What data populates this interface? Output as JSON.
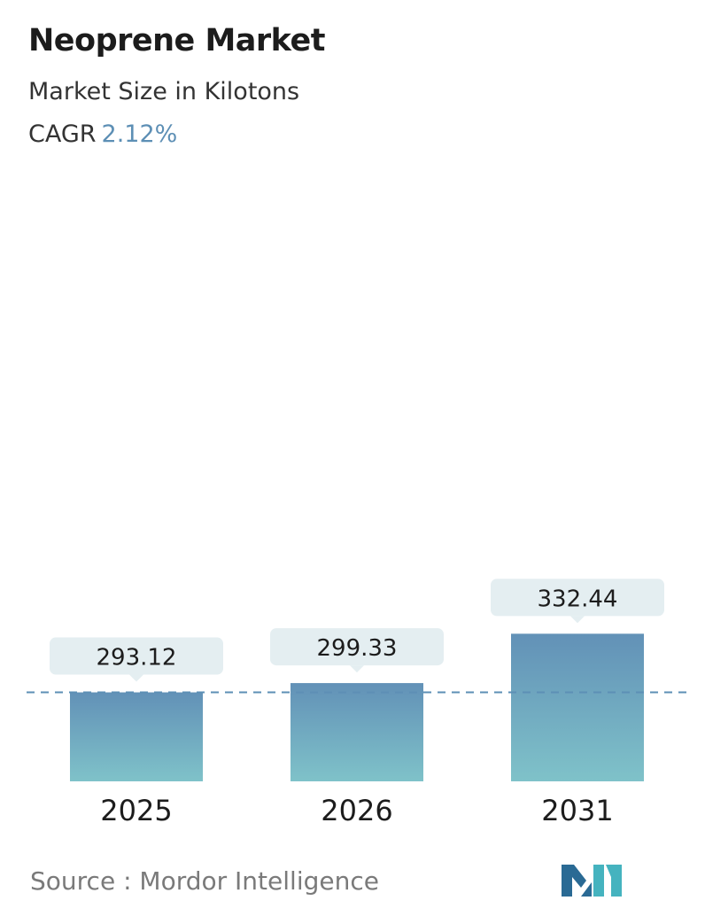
{
  "header": {
    "title": "Neoprene Market",
    "subtitle": "Market Size in Kilotons",
    "cagr_label": "CAGR",
    "cagr_value": "2.12%"
  },
  "footer": {
    "source_label": "Source :",
    "source_name": "Mordor Intelligence"
  },
  "colors": {
    "bar_top": "#6291b7",
    "bar_bottom": "#7fc2c9",
    "label_box": "#e4eef1",
    "cagr_accent": "#5d8fb5",
    "reference_line": "#5d8fb5",
    "logo_dark": "#2a6a94",
    "logo_light": "#45b3bf"
  },
  "icons": {
    "logo": "mordor-intelligence-logo"
  },
  "chart_data": {
    "type": "bar",
    "title": "Neoprene Market",
    "subtitle": "Market Size in Kilotons",
    "categories": [
      "2025",
      "2026",
      "2031"
    ],
    "values": [
      293.12,
      299.33,
      332.44
    ],
    "value_labels": [
      "293.12",
      "299.33",
      "332.44"
    ],
    "reference_line": {
      "value": 293.12,
      "style": "dashed"
    },
    "y_axis_visible": false,
    "grid": false,
    "legend": "none"
  }
}
